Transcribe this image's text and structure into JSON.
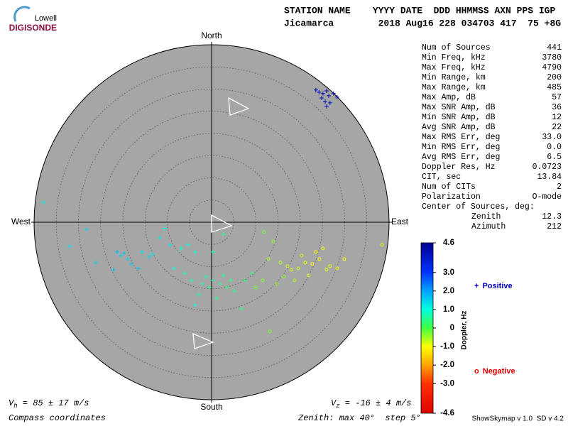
{
  "header": {
    "logo_top": "Lowell",
    "logo_bottom": "DIGISONDE",
    "columns": "STATION NAME    YYYY DATE  DDD HHMMSS AXN PPS IGP",
    "values": "Jicamarca        2018 Aug16 228 034703 417  75 +8G"
  },
  "stats": {
    "rows": [
      [
        "Num of Sources",
        "441"
      ],
      [
        "Min Freq, kHz",
        "3780"
      ],
      [
        "Max Freq, kHz",
        "4790"
      ],
      [
        "Min Range, km",
        "200"
      ],
      [
        "Max Range, km",
        "485"
      ],
      [
        "Max Amp, dB",
        "57"
      ],
      [
        "Max SNR Amp, dB",
        "36"
      ],
      [
        "Min SNR Amp, dB",
        "12"
      ],
      [
        "Avg SNR Amp, dB",
        "22"
      ],
      [
        "Max RMS Err, deg",
        "33.0"
      ],
      [
        "Min RMS Err, deg",
        "0.0"
      ],
      [
        "Avg RMS Err, deg",
        "6.5"
      ],
      [
        "Doppler Res, Hz",
        "0.0723"
      ],
      [
        "CIT, sec",
        "13.84"
      ],
      [
        "Num of CITs",
        "2"
      ],
      [
        "Polarization",
        "O-mode"
      ]
    ],
    "center_title": "Center of Sources, deg:",
    "center_rows": [
      [
        "Zenith",
        "12.3"
      ],
      [
        "Azimuth",
        "212"
      ]
    ]
  },
  "footer": {
    "vh_symbol": "V",
    "vh_sub": "h",
    "vh_text": " = 85 ± 17 m/s",
    "vz_symbol": "V",
    "vz_sub": "z",
    "vz_text": " = -16 ± 4 m/s",
    "coords": "Compass coordinates",
    "zenith": "Zenith: max 40°  step 5°",
    "version": "ShowSkymap v 1.0  SD v 4.2"
  },
  "chart_data": {
    "type": "skymap",
    "compass": {
      "north": "North",
      "south": "South",
      "east": "East",
      "west": "West"
    },
    "rlim": [
      0,
      40
    ],
    "rstep": 5,
    "colorbar": {
      "label": "Doppler, Hz",
      "clim": [
        -4.6,
        4.6
      ],
      "ticks": [
        4.6,
        {
          "value": 3,
          "label": "3.0"
        },
        {
          "value": 2,
          "label": "2.0"
        },
        {
          "value": 1,
          "label": "1.0"
        },
        0,
        {
          "value": -1,
          "label": "-1.0"
        },
        {
          "value": -2,
          "label": "-2.0"
        },
        {
          "value": -3,
          "label": "-3.0"
        },
        -4.6
      ]
    },
    "series": [
      {
        "name": "Positive",
        "marker": "+",
        "color": "#0000c8",
        "x": [
          23.5,
          24.2,
          25.1,
          25.9,
          26.4,
          27.5,
          28.3,
          24.8,
          25.6,
          26.7,
          25.9,
          -37.8,
          -28.2,
          -32,
          -26.1,
          -22.1,
          -21.3,
          -20.5,
          -19.7,
          -18.9,
          -18.1,
          -15.7,
          -16.5,
          -14.1,
          -13.3,
          -10.6,
          -11.7,
          -9.3,
          -6.9,
          -5.3,
          -3.7,
          -8.5,
          -6.1,
          -4.5,
          -2.1,
          -0.5,
          0.3,
          1.9,
          3.5,
          -1.3,
          -2.9,
          -3.7,
          1.1,
          6.7,
          5.1,
          7.5,
          9.1,
          2.7,
          4.3,
          0.3,
          2.7
        ],
        "y": [
          29.8,
          29.3,
          29.0,
          29.6,
          28.5,
          29.0,
          28.2,
          28.0,
          27.2,
          26.9,
          26.1,
          4.5,
          -1.6,
          -5.4,
          -9.1,
          -10.7,
          -6.7,
          -7.5,
          -7.0,
          -8.3,
          -9.4,
          -6.7,
          -10.4,
          -7.8,
          -7.2,
          -1.4,
          -3.5,
          -5.1,
          -5.9,
          -5.1,
          -6.7,
          -10.4,
          -11.5,
          -13.1,
          -13.9,
          -14.7,
          -13.1,
          -13.9,
          -14.7,
          -12.3,
          -16.3,
          -18.7,
          -17.1,
          -19.5,
          -15.5,
          -13.1,
          -11.5,
          -12.0,
          -13.1,
          -6.7,
          -2.7
        ],
        "doppler": [
          4.2,
          4.1,
          4.0,
          4.3,
          4.0,
          4.1,
          4.2,
          4.0,
          4.1,
          4.2,
          4.0,
          1.2,
          1.4,
          1.3,
          1.5,
          1.6,
          1.7,
          1.5,
          1.6,
          1.4,
          1.5,
          1.3,
          1.6,
          1.4,
          1.2,
          1.1,
          1.3,
          1.2,
          1.0,
          1.1,
          0.9,
          1.0,
          0.8,
          0.7,
          0.6,
          0.5,
          0.6,
          0.5,
          0.4,
          0.7,
          0.8,
          0.9,
          0.5,
          0.4,
          0.5,
          0.3,
          0.3,
          0.6,
          0.4,
          0.8,
          0.5
        ]
      },
      {
        "name": "Negative",
        "marker": "o",
        "color": "#e00000",
        "x": [
          11.8,
          13.9,
          12.8,
          15.5,
          17.1,
          18.0,
          19.5,
          21.1,
          22.7,
          24.3,
          25.1,
          26.7,
          28.3,
          29.9,
          38.4,
          16.3,
          18.7,
          14.7,
          11.5,
          9.9,
          21.9,
          20.3,
          13.1,
          23.5,
          25.9
        ],
        "y": [
          -2.2,
          -4.3,
          -8.3,
          -9.1,
          -9.9,
          -10.7,
          -10.4,
          -9.1,
          -9.4,
          -8.3,
          -5.9,
          -9.9,
          -10.4,
          -8.3,
          -5.1,
          -12.3,
          -13.1,
          -13.9,
          -13.1,
          -14.7,
          -12.0,
          -7.5,
          -24.6,
          -6.7,
          -10.7
        ],
        "doppler": [
          -0.3,
          -0.4,
          -0.5,
          -0.6,
          -0.7,
          -0.8,
          -0.7,
          -0.9,
          -1.0,
          -1.1,
          -0.9,
          -1.0,
          -1.1,
          -1.0,
          -0.8,
          -0.5,
          -0.6,
          -0.4,
          -0.3,
          -0.2,
          -0.8,
          -0.7,
          -0.3,
          -1.0,
          -0.9
        ]
      }
    ]
  }
}
